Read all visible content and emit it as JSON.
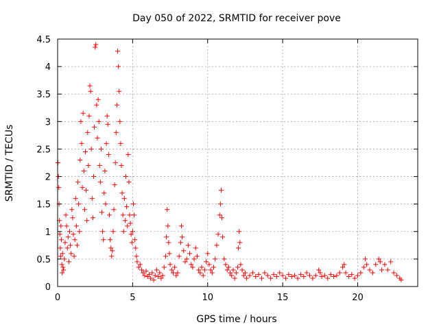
{
  "chart_data": {
    "type": "scatter",
    "title": "Day 050 of 2022, SRMTID for receiver pove",
    "xlabel": "GPS time / hours",
    "ylabel": "SRMTID / TECUs",
    "xlim": [
      0,
      24
    ],
    "ylim": [
      0,
      4.5
    ],
    "grid": true,
    "marker": "+",
    "color": "#ff0000",
    "xticks": [
      0,
      5,
      10,
      15,
      20
    ],
    "xtick_labels": [
      "0",
      "5",
      "10",
      "15",
      "20"
    ],
    "yticks": [
      0,
      0.5,
      1,
      1.5,
      2,
      2.5,
      3,
      3.5,
      4,
      4.5
    ],
    "ytick_labels": [
      "0",
      "0.5",
      "1",
      "1.5",
      "2",
      "2.5",
      "3",
      "3.5",
      "4",
      "4.5"
    ],
    "series": [
      {
        "name": "SRMTID",
        "points": [
          [
            0.02,
            2.25
          ],
          [
            0.05,
            2.0
          ],
          [
            0.08,
            1.8
          ],
          [
            0.1,
            1.5
          ],
          [
            0.12,
            1.2
          ],
          [
            0.15,
            0.95
          ],
          [
            0.18,
            0.7
          ],
          [
            0.2,
            0.55
          ],
          [
            0.22,
            1.1
          ],
          [
            0.25,
            0.85
          ],
          [
            0.28,
            0.4
          ],
          [
            0.3,
            0.25
          ],
          [
            0.33,
            0.6
          ],
          [
            0.36,
            0.35
          ],
          [
            0.4,
            0.3
          ],
          [
            0.45,
            0.5
          ],
          [
            0.5,
            0.8
          ],
          [
            0.55,
            1.3
          ],
          [
            0.6,
            1.1
          ],
          [
            0.65,
            0.7
          ],
          [
            0.7,
            0.9
          ],
          [
            0.75,
            0.45
          ],
          [
            0.8,
            1.0
          ],
          [
            0.85,
            0.75
          ],
          [
            0.9,
            0.6
          ],
          [
            0.95,
            1.4
          ],
          [
            1.0,
            1.25
          ],
          [
            1.05,
            0.95
          ],
          [
            1.1,
            0.55
          ],
          [
            1.15,
            0.85
          ],
          [
            1.2,
            1.6
          ],
          [
            1.25,
            1.1
          ],
          [
            1.3,
            0.75
          ],
          [
            1.35,
            1.9
          ],
          [
            1.4,
            1.5
          ],
          [
            1.45,
            1.0
          ],
          [
            1.5,
            2.3
          ],
          [
            1.55,
            3.0
          ],
          [
            1.6,
            2.6
          ],
          [
            1.65,
            1.8
          ],
          [
            1.7,
            3.15
          ],
          [
            1.75,
            2.1
          ],
          [
            1.8,
            1.4
          ],
          [
            1.85,
            2.45
          ],
          [
            1.9,
            1.75
          ],
          [
            1.95,
            1.2
          ],
          [
            2.0,
            2.8
          ],
          [
            2.05,
            2.2
          ],
          [
            2.1,
            3.1
          ],
          [
            2.15,
            3.65
          ],
          [
            2.2,
            3.55
          ],
          [
            2.25,
            2.5
          ],
          [
            2.3,
            1.6
          ],
          [
            2.35,
            1.25
          ],
          [
            2.4,
            2.0
          ],
          [
            2.45,
            2.9
          ],
          [
            2.5,
            4.35
          ],
          [
            2.55,
            4.4
          ],
          [
            2.6,
            3.3
          ],
          [
            2.65,
            2.7
          ],
          [
            2.7,
            3.4
          ],
          [
            2.75,
            3.0
          ],
          [
            2.8,
            2.2
          ],
          [
            2.85,
            1.9
          ],
          [
            2.9,
            2.5
          ],
          [
            2.95,
            1.35
          ],
          [
            3.0,
            1.0
          ],
          [
            3.05,
            0.85
          ],
          [
            3.1,
            1.7
          ],
          [
            3.15,
            2.1
          ],
          [
            3.2,
            1.5
          ],
          [
            3.25,
            2.6
          ],
          [
            3.3,
            3.1
          ],
          [
            3.35,
            2.95
          ],
          [
            3.4,
            2.4
          ],
          [
            3.45,
            1.3
          ],
          [
            3.5,
            0.85
          ],
          [
            3.55,
            0.7
          ],
          [
            3.6,
            0.55
          ],
          [
            3.65,
            0.65
          ],
          [
            3.7,
            1.0
          ],
          [
            3.75,
            1.4
          ],
          [
            3.8,
            1.85
          ],
          [
            3.85,
            2.25
          ],
          [
            3.9,
            2.8
          ],
          [
            3.95,
            3.3
          ],
          [
            4.0,
            4.28
          ],
          [
            4.05,
            4.0
          ],
          [
            4.1,
            3.55
          ],
          [
            4.15,
            3.0
          ],
          [
            4.2,
            2.6
          ],
          [
            4.25,
            2.2
          ],
          [
            4.3,
            1.7
          ],
          [
            4.35,
            1.3
          ],
          [
            4.4,
            1.0
          ],
          [
            4.45,
            1.6
          ],
          [
            4.5,
            1.2
          ],
          [
            4.55,
            2.0
          ],
          [
            4.6,
            1.45
          ],
          [
            4.65,
            1.1
          ],
          [
            4.7,
            2.4
          ],
          [
            4.75,
            1.9
          ],
          [
            4.8,
            1.3
          ],
          [
            4.85,
            1.15
          ],
          [
            4.9,
            0.95
          ],
          [
            4.95,
            0.8
          ],
          [
            5.0,
            1.0
          ],
          [
            5.05,
            1.5
          ],
          [
            5.1,
            1.3
          ],
          [
            5.15,
            0.85
          ],
          [
            5.2,
            0.7
          ],
          [
            5.25,
            0.55
          ],
          [
            5.3,
            0.45
          ],
          [
            5.4,
            0.35
          ],
          [
            5.5,
            0.4
          ],
          [
            5.6,
            0.3
          ],
          [
            5.7,
            0.25
          ],
          [
            5.8,
            0.2
          ],
          [
            5.9,
            0.28
          ],
          [
            6.0,
            0.18
          ],
          [
            6.1,
            0.22
          ],
          [
            6.2,
            0.15
          ],
          [
            6.3,
            0.25
          ],
          [
            6.4,
            0.12
          ],
          [
            6.5,
            0.2
          ],
          [
            6.6,
            0.3
          ],
          [
            6.7,
            0.18
          ],
          [
            6.8,
            0.25
          ],
          [
            6.9,
            0.15
          ],
          [
            7.0,
            0.2
          ],
          [
            7.1,
            0.35
          ],
          [
            7.2,
            0.55
          ],
          [
            7.25,
            0.9
          ],
          [
            7.3,
            1.4
          ],
          [
            7.35,
            1.1
          ],
          [
            7.4,
            0.8
          ],
          [
            7.45,
            0.6
          ],
          [
            7.5,
            0.4
          ],
          [
            7.6,
            0.3
          ],
          [
            7.7,
            0.25
          ],
          [
            7.8,
            0.35
          ],
          [
            7.9,
            0.2
          ],
          [
            8.0,
            0.25
          ],
          [
            8.1,
            0.55
          ],
          [
            8.2,
            0.8
          ],
          [
            8.25,
            1.1
          ],
          [
            8.3,
            0.9
          ],
          [
            8.4,
            0.65
          ],
          [
            8.5,
            0.45
          ],
          [
            8.6,
            0.5
          ],
          [
            8.7,
            0.75
          ],
          [
            8.8,
            0.6
          ],
          [
            8.9,
            0.4
          ],
          [
            9.0,
            0.35
          ],
          [
            9.1,
            0.5
          ],
          [
            9.2,
            0.7
          ],
          [
            9.3,
            0.55
          ],
          [
            9.4,
            0.3
          ],
          [
            9.5,
            0.25
          ],
          [
            9.6,
            0.35
          ],
          [
            9.7,
            0.2
          ],
          [
            9.8,
            0.3
          ],
          [
            9.9,
            0.45
          ],
          [
            10.0,
            0.6
          ],
          [
            10.1,
            0.4
          ],
          [
            10.2,
            0.3
          ],
          [
            10.3,
            0.25
          ],
          [
            10.4,
            0.35
          ],
          [
            10.5,
            0.5
          ],
          [
            10.6,
            0.75
          ],
          [
            10.7,
            0.95
          ],
          [
            10.8,
            1.3
          ],
          [
            10.85,
            1.5
          ],
          [
            10.9,
            1.75
          ],
          [
            10.95,
            1.25
          ],
          [
            11.0,
            0.9
          ],
          [
            11.1,
            0.5
          ],
          [
            11.2,
            0.4
          ],
          [
            11.3,
            0.3
          ],
          [
            11.4,
            0.35
          ],
          [
            11.5,
            0.25
          ],
          [
            11.6,
            0.2
          ],
          [
            11.7,
            0.3
          ],
          [
            11.8,
            0.15
          ],
          [
            11.9,
            0.25
          ],
          [
            12.0,
            0.35
          ],
          [
            12.05,
            0.7
          ],
          [
            12.1,
            1.0
          ],
          [
            12.15,
            0.8
          ],
          [
            12.2,
            0.4
          ],
          [
            12.3,
            0.3
          ],
          [
            12.4,
            0.2
          ],
          [
            12.5,
            0.25
          ],
          [
            12.6,
            0.15
          ],
          [
            12.8,
            0.2
          ],
          [
            13.0,
            0.25
          ],
          [
            13.2,
            0.18
          ],
          [
            13.4,
            0.22
          ],
          [
            13.6,
            0.15
          ],
          [
            13.8,
            0.25
          ],
          [
            14.0,
            0.2
          ],
          [
            14.2,
            0.15
          ],
          [
            14.4,
            0.22
          ],
          [
            14.6,
            0.18
          ],
          [
            14.8,
            0.25
          ],
          [
            15.0,
            0.2
          ],
          [
            15.2,
            0.15
          ],
          [
            15.4,
            0.22
          ],
          [
            15.6,
            0.18
          ],
          [
            15.8,
            0.2
          ],
          [
            16.0,
            0.15
          ],
          [
            16.2,
            0.22
          ],
          [
            16.4,
            0.18
          ],
          [
            16.6,
            0.25
          ],
          [
            16.8,
            0.2
          ],
          [
            17.0,
            0.15
          ],
          [
            17.2,
            0.2
          ],
          [
            17.4,
            0.3
          ],
          [
            17.5,
            0.25
          ],
          [
            17.6,
            0.18
          ],
          [
            17.8,
            0.2
          ],
          [
            18.0,
            0.15
          ],
          [
            18.2,
            0.22
          ],
          [
            18.4,
            0.18
          ],
          [
            18.6,
            0.2
          ],
          [
            18.8,
            0.25
          ],
          [
            19.0,
            0.35
          ],
          [
            19.1,
            0.4
          ],
          [
            19.2,
            0.25
          ],
          [
            19.4,
            0.18
          ],
          [
            19.6,
            0.22
          ],
          [
            19.8,
            0.15
          ],
          [
            20.0,
            0.2
          ],
          [
            20.2,
            0.25
          ],
          [
            20.4,
            0.35
          ],
          [
            20.5,
            0.5
          ],
          [
            20.6,
            0.4
          ],
          [
            20.8,
            0.3
          ],
          [
            21.0,
            0.25
          ],
          [
            21.2,
            0.4
          ],
          [
            21.4,
            0.5
          ],
          [
            21.5,
            0.45
          ],
          [
            21.6,
            0.3
          ],
          [
            21.8,
            0.4
          ],
          [
            22.0,
            0.3
          ],
          [
            22.2,
            0.45
          ],
          [
            22.4,
            0.25
          ],
          [
            22.6,
            0.2
          ],
          [
            22.8,
            0.15
          ],
          [
            22.9,
            0.12
          ]
        ]
      }
    ]
  }
}
